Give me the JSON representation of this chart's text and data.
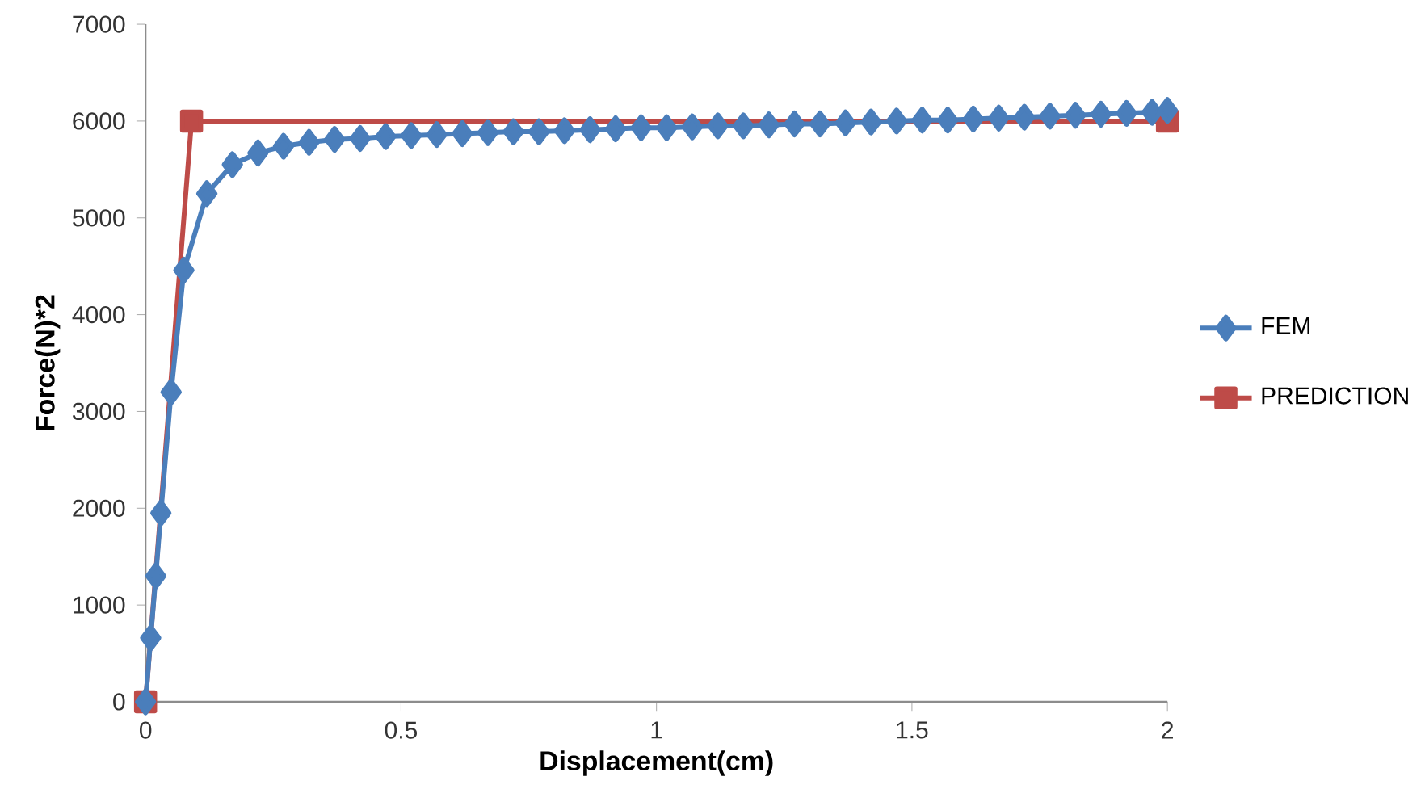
{
  "chart_data": {
    "type": "line",
    "xlabel": "Displacement(cm)",
    "ylabel": "Force(N)*2",
    "xlim": [
      0,
      2
    ],
    "xticks": [
      0,
      0.5,
      1,
      1.5,
      2
    ],
    "ylim": [
      0,
      7000
    ],
    "yticks": [
      0,
      1000,
      2000,
      3000,
      4000,
      5000,
      6000,
      7000
    ],
    "grid": false,
    "legend": "right",
    "series": [
      {
        "name": "FEM",
        "color": "#4a7ebb",
        "marker": "diamond",
        "x": [
          0,
          0.01,
          0.02,
          0.03,
          0.05,
          0.075,
          0.12,
          0.17,
          0.22,
          0.27,
          0.32,
          0.37,
          0.42,
          0.47,
          0.52,
          0.57,
          0.62,
          0.67,
          0.72,
          0.77,
          0.82,
          0.87,
          0.92,
          0.97,
          1.02,
          1.07,
          1.12,
          1.17,
          1.22,
          1.27,
          1.32,
          1.37,
          1.42,
          1.47,
          1.52,
          1.57,
          1.62,
          1.67,
          1.72,
          1.77,
          1.82,
          1.87,
          1.92,
          1.97,
          2.0
        ],
        "values": [
          0,
          660,
          1300,
          1950,
          3200,
          4460,
          5250,
          5550,
          5670,
          5740,
          5780,
          5810,
          5820,
          5840,
          5850,
          5860,
          5870,
          5880,
          5890,
          5890,
          5900,
          5910,
          5920,
          5930,
          5930,
          5940,
          5950,
          5950,
          5960,
          5970,
          5970,
          5980,
          5990,
          6000,
          6010,
          6010,
          6020,
          6030,
          6040,
          6050,
          6060,
          6070,
          6080,
          6090,
          6110
        ]
      },
      {
        "name": "PREDICTION",
        "color": "#be4b48",
        "marker": "square",
        "x": [
          0,
          0.09,
          2
        ],
        "values": [
          0,
          6000,
          6000
        ]
      }
    ]
  }
}
